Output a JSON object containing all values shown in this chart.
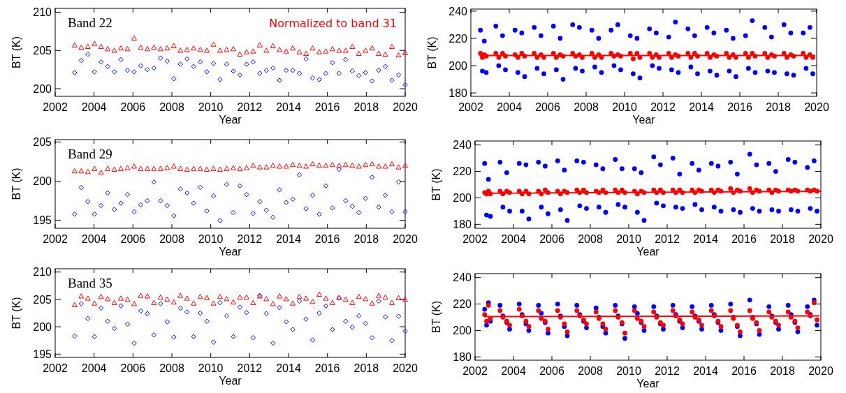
{
  "chart_data": [
    {
      "type": "scatter",
      "title": "Band 22",
      "xlabel": "Year",
      "ylabel": "BT (K)",
      "annotations": [
        "Normalized to band 31"
      ],
      "xlim": [
        2002,
        2020
      ],
      "xticks": [
        2002,
        2004,
        2006,
        2008,
        2010,
        2012,
        2014,
        2016,
        2018,
        2020
      ],
      "ylim": [
        199,
        210.5
      ],
      "yticks": [
        200,
        205,
        210
      ],
      "x": [
        2003.0,
        2003.34,
        2003.68,
        2004.02,
        2004.36,
        2004.7,
        2005.04,
        2005.38,
        2005.72,
        2006.06,
        2006.4,
        2006.74,
        2007.08,
        2007.42,
        2007.76,
        2008.1,
        2008.44,
        2008.78,
        2009.12,
        2009.46,
        2009.8,
        2010.14,
        2010.48,
        2010.82,
        2011.16,
        2011.5,
        2011.84,
        2012.18,
        2012.52,
        2012.86,
        2013.2,
        2013.54,
        2013.88,
        2014.22,
        2014.56,
        2014.9,
        2015.24,
        2015.58,
        2015.92,
        2016.26,
        2016.6,
        2016.94,
        2017.28,
        2017.62,
        2017.96,
        2018.3,
        2018.64,
        2018.98,
        2019.32,
        2019.66,
        2020.0
      ],
      "series": [
        {
          "color": "#0000ff",
          "marker": "diamond",
          "values": [
            202.1,
            203.7,
            204.5,
            202.2,
            203.5,
            202.9,
            202.2,
            203.8,
            202.4,
            202.2,
            203.0,
            202.5,
            202.7,
            204.0,
            203.6,
            201.3,
            203.2,
            203.9,
            202.9,
            203.5,
            202.2,
            203.3,
            201.2,
            203.2,
            202.3,
            201.8,
            203.2,
            203.5,
            202.0,
            202.4,
            202.7,
            201.1,
            202.4,
            202.4,
            202.0,
            203.9,
            201.4,
            201.2,
            202.0,
            203.4,
            202.0,
            203.8,
            202.3,
            201.7,
            202.1,
            201.0,
            202.4,
            202.9,
            201.1,
            201.8,
            200.5
          ]
        },
        {
          "color": "#ff0000",
          "marker": "triangle",
          "values": [
            205.7,
            205.4,
            205.5,
            205.9,
            205.5,
            205.2,
            205.0,
            205.3,
            205.2,
            206.6,
            205.4,
            205.2,
            205.4,
            205.2,
            205.3,
            205.6,
            205.0,
            205.1,
            205.3,
            205.1,
            205.0,
            205.8,
            205.0,
            205.1,
            205.2,
            204.5,
            204.8,
            204.9,
            205.7,
            205.0,
            205.6,
            205.1,
            204.9,
            205.3,
            204.8,
            204.6,
            205.3,
            204.8,
            204.9,
            205.2,
            205.0,
            205.0,
            205.5,
            204.6,
            205.0,
            205.3,
            204.6,
            204.5,
            205.5,
            204.4,
            204.7
          ]
        }
      ]
    },
    {
      "type": "scatter",
      "title": "Band 29",
      "xlabel": "Year",
      "ylabel": "BT (K)",
      "xlim": [
        2002,
        2020
      ],
      "xticks": [
        2002,
        2004,
        2006,
        2008,
        2010,
        2012,
        2014,
        2016,
        2018,
        2020
      ],
      "ylim": [
        194,
        205.3
      ],
      "yticks": [
        195,
        200,
        205
      ],
      "x": [
        2003.0,
        2003.34,
        2003.68,
        2004.02,
        2004.36,
        2004.7,
        2005.04,
        2005.38,
        2005.72,
        2006.06,
        2006.4,
        2006.74,
        2007.08,
        2007.42,
        2007.76,
        2008.1,
        2008.44,
        2008.78,
        2009.12,
        2009.46,
        2009.8,
        2010.14,
        2010.48,
        2010.82,
        2011.16,
        2011.5,
        2011.84,
        2012.18,
        2012.52,
        2012.86,
        2013.2,
        2013.54,
        2013.88,
        2014.22,
        2014.56,
        2014.9,
        2015.24,
        2015.58,
        2015.92,
        2016.26,
        2016.6,
        2016.94,
        2017.28,
        2017.62,
        2017.96,
        2018.3,
        2018.64,
        2018.98,
        2019.32,
        2019.66,
        2020.0
      ],
      "series": [
        {
          "color": "#0000ff",
          "marker": "diamond",
          "values": [
            195.8,
            199.2,
            197.4,
            195.8,
            196.9,
            198.5,
            196.4,
            197.2,
            198.3,
            196.1,
            197.0,
            197.5,
            199.9,
            197.5,
            196.9,
            195.6,
            199.0,
            198.5,
            197.2,
            199.2,
            196.2,
            198.1,
            195.0,
            199.6,
            196.0,
            199.4,
            198.3,
            195.9,
            197.4,
            196.3,
            195.4,
            198.9,
            197.3,
            197.7,
            200.8,
            196.5,
            198.2,
            195.8,
            199.4,
            196.6,
            201.5,
            197.5,
            196.8,
            196.0,
            197.8,
            200.5,
            196.7,
            198.2,
            196.1,
            199.9,
            196.1
          ]
        },
        {
          "color": "#ff0000",
          "marker": "triangle",
          "values": [
            201.3,
            201.3,
            201.2,
            201.6,
            201.1,
            201.6,
            201.5,
            201.6,
            201.7,
            201.9,
            201.6,
            201.6,
            201.6,
            201.6,
            201.7,
            201.9,
            201.6,
            201.5,
            201.6,
            201.6,
            201.5,
            201.6,
            201.5,
            201.6,
            201.7,
            201.6,
            201.7,
            202.0,
            201.8,
            201.8,
            202.0,
            201.9,
            201.9,
            202.1,
            202.0,
            201.9,
            202.2,
            202.0,
            202.0,
            202.1,
            202.0,
            202.1,
            202.0,
            201.9,
            202.1,
            202.2,
            201.9,
            201.9,
            202.2,
            201.8,
            202.0
          ]
        }
      ]
    },
    {
      "type": "scatter",
      "title": "Band 35",
      "xlabel": "Year",
      "ylabel": "BT (K)",
      "xlim": [
        2002,
        2020
      ],
      "xticks": [
        2002,
        2004,
        2006,
        2008,
        2010,
        2012,
        2014,
        2016,
        2018,
        2020
      ],
      "ylim": [
        194.4,
        210.6
      ],
      "yticks": [
        195,
        200,
        205,
        210
      ],
      "x": [
        2003.0,
        2003.34,
        2003.68,
        2004.02,
        2004.36,
        2004.7,
        2005.04,
        2005.38,
        2005.72,
        2006.06,
        2006.4,
        2006.74,
        2007.08,
        2007.42,
        2007.76,
        2008.1,
        2008.44,
        2008.78,
        2009.12,
        2009.46,
        2009.8,
        2010.14,
        2010.48,
        2010.82,
        2011.16,
        2011.5,
        2011.84,
        2012.18,
        2012.52,
        2012.86,
        2013.2,
        2013.54,
        2013.88,
        2014.22,
        2014.56,
        2014.9,
        2015.24,
        2015.58,
        2015.92,
        2016.26,
        2016.6,
        2016.94,
        2017.28,
        2017.62,
        2017.96,
        2018.3,
        2018.64,
        2018.98,
        2019.32,
        2019.66,
        2020.0
      ],
      "series": [
        {
          "color": "#0000ff",
          "marker": "diamond",
          "values": [
            198.3,
            204.2,
            201.5,
            198.2,
            203.4,
            201.0,
            199.7,
            203.8,
            200.5,
            197.0,
            202.9,
            202.4,
            198.5,
            204.2,
            200.9,
            198.1,
            203.4,
            202.7,
            198.2,
            202.5,
            201.0,
            197.2,
            204.4,
            202.0,
            198.2,
            203.6,
            202.6,
            198.0,
            205.7,
            202.4,
            197.0,
            203.5,
            200.9,
            199.5,
            204.7,
            201.4,
            197.6,
            202.5,
            203.8,
            199.5,
            205.3,
            201.0,
            199.9,
            202.0,
            200.6,
            198.0,
            204.7,
            201.8,
            197.5,
            201.9,
            199.2
          ]
        },
        {
          "color": "#ff0000",
          "marker": "triangle",
          "values": [
            204.0,
            205.6,
            205.2,
            204.3,
            205.5,
            205.1,
            204.4,
            205.2,
            205.0,
            204.2,
            205.7,
            205.6,
            204.4,
            205.4,
            205.0,
            204.5,
            205.7,
            205.2,
            204.3,
            205.5,
            205.3,
            204.3,
            205.5,
            205.1,
            204.5,
            205.4,
            205.4,
            204.4,
            205.6,
            205.1,
            204.2,
            205.6,
            205.1,
            204.3,
            205.5,
            205.2,
            204.6,
            205.9,
            205.2,
            204.4,
            205.3,
            205.0,
            204.4,
            205.5,
            205.1,
            204.3,
            205.7,
            205.4,
            204.4,
            205.3,
            205.0
          ]
        }
      ]
    },
    {
      "type": "scatter",
      "xlabel": "Year",
      "ylabel": "BT (K)",
      "xlim": [
        2002,
        2020
      ],
      "xticks": [
        2002,
        2004,
        2006,
        2008,
        2010,
        2012,
        2014,
        2016,
        2018,
        2020
      ],
      "ylim": [
        177.5,
        241.5
      ],
      "yticks": [
        180,
        200,
        220,
        240
      ],
      "x": [
        2002.5,
        2002.6,
        2002.7,
        2002.8,
        2003.3,
        2003.45,
        2003.65,
        2003.8,
        2004.3,
        2004.45,
        2004.65,
        2004.8,
        2005.3,
        2005.45,
        2005.65,
        2005.8,
        2006.3,
        2006.45,
        2006.65,
        2006.8,
        2007.3,
        2007.45,
        2007.65,
        2007.8,
        2008.3,
        2008.45,
        2008.65,
        2008.8,
        2009.3,
        2009.45,
        2009.65,
        2009.8,
        2010.3,
        2010.45,
        2010.65,
        2010.8,
        2011.3,
        2011.45,
        2011.65,
        2011.8,
        2012.3,
        2012.45,
        2012.65,
        2012.8,
        2013.3,
        2013.45,
        2013.65,
        2013.8,
        2014.3,
        2014.45,
        2014.65,
        2014.8,
        2015.3,
        2015.45,
        2015.65,
        2015.8,
        2016.3,
        2016.45,
        2016.65,
        2016.8,
        2017.3,
        2017.45,
        2017.65,
        2017.8,
        2018.3,
        2018.45,
        2018.65,
        2018.8,
        2019.3,
        2019.45,
        2019.65,
        2019.8
      ],
      "series": [
        {
          "color": "#0000ff",
          "marker": "circle",
          "values": [
            226,
            196,
            218,
            195,
            229,
            200,
            222,
            197,
            226,
            195,
            224,
            192,
            228,
            198,
            222,
            194,
            229,
            197,
            220,
            190,
            230,
            198,
            228,
            196,
            226,
            199,
            220,
            195,
            226,
            200,
            230,
            197,
            222,
            194,
            220,
            191,
            227,
            200,
            224,
            198,
            221,
            197,
            232,
            195,
            227,
            199,
            222,
            194,
            228,
            196,
            224,
            193,
            226,
            196,
            220,
            192,
            222,
            198,
            233,
            195,
            228,
            196,
            221,
            195,
            230,
            194,
            224,
            193,
            224,
            198,
            228,
            194
          ]
        },
        {
          "color": "#ff0000",
          "marker": "circle",
          "values": [
            209,
            206,
            208,
            207,
            209,
            206,
            209,
            207,
            208,
            206,
            209,
            207,
            209,
            206,
            208,
            206,
            209,
            206,
            208,
            207,
            209,
            207,
            208,
            206,
            209,
            206,
            208,
            206,
            209,
            207,
            208,
            207,
            209,
            205,
            209,
            206,
            209,
            206,
            208,
            206,
            209,
            206,
            208,
            207,
            209,
            206,
            209,
            207,
            209,
            206,
            208,
            207,
            209,
            206,
            208,
            206,
            209,
            206,
            209,
            207,
            209,
            206,
            208,
            207,
            209,
            206,
            208,
            207,
            209,
            206,
            208,
            206
          ]
        },
        {
          "type": "line",
          "color": "#ff0000",
          "line_style": "solid",
          "x": [
            2002.5,
            2019.9
          ],
          "values": [
            207.5,
            207.5
          ]
        }
      ]
    },
    {
      "type": "scatter",
      "xlabel": "Year",
      "ylabel": "BT (K)",
      "xlim": [
        2002,
        2020
      ],
      "xticks": [
        2002,
        2004,
        2006,
        2008,
        2010,
        2012,
        2014,
        2016,
        2018,
        2020
      ],
      "ylim": [
        177,
        243
      ],
      "yticks": [
        180,
        200,
        220,
        240
      ],
      "x": [
        2002.5,
        2002.6,
        2002.7,
        2002.8,
        2003.3,
        2003.45,
        2003.65,
        2003.8,
        2004.3,
        2004.45,
        2004.65,
        2004.8,
        2005.3,
        2005.45,
        2005.65,
        2005.8,
        2006.3,
        2006.45,
        2006.65,
        2006.8,
        2007.3,
        2007.45,
        2007.65,
        2007.8,
        2008.3,
        2008.45,
        2008.65,
        2008.8,
        2009.3,
        2009.45,
        2009.65,
        2009.8,
        2010.3,
        2010.45,
        2010.65,
        2010.8,
        2011.3,
        2011.45,
        2011.65,
        2011.8,
        2012.3,
        2012.45,
        2012.65,
        2012.8,
        2013.3,
        2013.45,
        2013.65,
        2013.8,
        2014.3,
        2014.45,
        2014.65,
        2014.8,
        2015.3,
        2015.45,
        2015.65,
        2015.8,
        2016.3,
        2016.45,
        2016.65,
        2016.8,
        2017.3,
        2017.45,
        2017.65,
        2017.8,
        2018.3,
        2018.45,
        2018.65,
        2018.8,
        2019.3,
        2019.45,
        2019.65,
        2019.8
      ],
      "series": [
        {
          "color": "#0000ff",
          "marker": "circle",
          "values": [
            226,
            187,
            214,
            186,
            227,
            193,
            219,
            190,
            226,
            190,
            225,
            184,
            227,
            193,
            224,
            188,
            228,
            191,
            221,
            183,
            228,
            194,
            227,
            192,
            225,
            193,
            222,
            189,
            229,
            195,
            222,
            193,
            222,
            189,
            219,
            183,
            231,
            196,
            225,
            194,
            230,
            193,
            218,
            192,
            226,
            195,
            221,
            191,
            226,
            193,
            224,
            190,
            227,
            191,
            218,
            189,
            233,
            192,
            225,
            190,
            226,
            191,
            220,
            190,
            229,
            191,
            227,
            190,
            223,
            192,
            228,
            190
          ]
        },
        {
          "color": "#ff0000",
          "marker": "circle",
          "values": [
            204,
            203,
            205,
            203,
            205,
            203,
            205,
            204,
            205,
            203,
            205,
            203,
            205,
            203,
            206,
            204,
            205,
            203,
            205,
            204,
            206,
            204,
            206,
            204,
            205,
            204,
            206,
            204,
            206,
            204,
            206,
            204,
            205,
            203,
            205,
            204,
            206,
            204,
            206,
            204,
            206,
            204,
            206,
            204,
            206,
            204,
            206,
            205,
            206,
            204,
            206,
            205,
            207,
            204,
            206,
            205,
            207,
            204,
            206,
            205,
            206,
            204,
            206,
            205,
            206,
            205,
            206,
            205,
            206,
            205,
            206,
            205
          ]
        },
        {
          "type": "line",
          "color": "#ff0000",
          "line_style": "solid",
          "x": [
            2002.5,
            2020
          ],
          "values": [
            203.5,
            205
          ]
        }
      ]
    },
    {
      "type": "scatter",
      "xlabel": "Year",
      "ylabel": "BT (K)",
      "xlim": [
        2002,
        2020
      ],
      "xticks": [
        2002,
        2004,
        2006,
        2008,
        2010,
        2012,
        2014,
        2016,
        2018,
        2020
      ],
      "ylim": [
        177.5,
        243
      ],
      "yticks": [
        180,
        200,
        220,
        240
      ],
      "x": [
        2002.5,
        2002.6,
        2002.7,
        2002.8,
        2003.3,
        2003.45,
        2003.65,
        2003.8,
        2004.3,
        2004.45,
        2004.65,
        2004.8,
        2005.3,
        2005.45,
        2005.65,
        2005.8,
        2006.3,
        2006.45,
        2006.65,
        2006.8,
        2007.3,
        2007.45,
        2007.65,
        2007.8,
        2008.3,
        2008.45,
        2008.65,
        2008.8,
        2009.3,
        2009.45,
        2009.65,
        2009.8,
        2010.3,
        2010.45,
        2010.65,
        2010.8,
        2011.3,
        2011.45,
        2011.65,
        2011.8,
        2012.3,
        2012.45,
        2012.65,
        2012.8,
        2013.3,
        2013.45,
        2013.65,
        2013.8,
        2014.3,
        2014.45,
        2014.65,
        2014.8,
        2015.3,
        2015.45,
        2015.65,
        2015.8,
        2016.3,
        2016.45,
        2016.65,
        2016.8,
        2017.3,
        2017.45,
        2017.65,
        2017.8,
        2018.3,
        2018.45,
        2018.65,
        2018.8,
        2019.3,
        2019.45,
        2019.65,
        2019.8
      ],
      "series": [
        {
          "color": "#0000ff",
          "marker": "circle",
          "values": [
            216,
            204,
            221,
            207,
            219,
            211,
            206,
            201,
            220,
            212,
            205,
            200,
            219,
            213,
            206,
            198,
            220,
            211,
            203,
            196,
            219,
            212,
            207,
            202,
            217,
            210,
            203,
            198,
            219,
            211,
            205,
            194,
            218,
            213,
            206,
            200,
            218,
            211,
            205,
            201,
            219,
            212,
            207,
            202,
            218,
            211,
            207,
            201,
            219,
            212,
            206,
            200,
            220,
            210,
            203,
            196,
            223,
            210,
            205,
            197,
            218,
            211,
            206,
            201,
            219,
            212,
            206,
            199,
            218,
            212,
            223,
            204
          ]
        },
        {
          "color": "#ff0000",
          "marker": "circle",
          "values": [
            212,
            207,
            219,
            209,
            215,
            210,
            207,
            204,
            216,
            211,
            207,
            203,
            215,
            209,
            207,
            201,
            215,
            210,
            205,
            199,
            215,
            211,
            208,
            205,
            214,
            209,
            205,
            201,
            215,
            210,
            206,
            198,
            215,
            209,
            207,
            203,
            214,
            210,
            206,
            204,
            215,
            211,
            208,
            205,
            214,
            210,
            208,
            204,
            215,
            211,
            207,
            203,
            215,
            209,
            204,
            199,
            215,
            209,
            206,
            200,
            214,
            210,
            207,
            204,
            214,
            210,
            207,
            202,
            214,
            211,
            221,
            208
          ]
        },
        {
          "type": "line",
          "color": "#ff0000",
          "line_style": "solid",
          "x": [
            2002.5,
            2019.9
          ],
          "values": [
            210.5,
            211
          ]
        }
      ]
    }
  ]
}
